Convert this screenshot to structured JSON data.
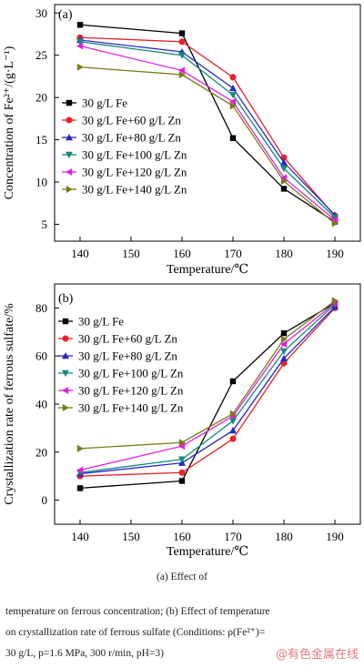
{
  "chart_data": [
    {
      "type": "line",
      "panel_label": "(a)",
      "x": [
        140,
        160,
        170,
        180,
        190
      ],
      "xlabel": "Temperature/℃",
      "ylabel": "Concentration of Fe²⁺/(g·L⁻¹)",
      "xlim": [
        135,
        195
      ],
      "ylim": [
        3,
        31
      ],
      "xticks": [
        140,
        150,
        160,
        170,
        180,
        190
      ],
      "yticks": [
        5,
        10,
        15,
        20,
        25,
        30
      ],
      "legend": "center-left",
      "grid": false,
      "series": [
        {
          "name": "30 g/L Fe",
          "values": [
            28.6,
            27.6,
            15.2,
            9.2,
            5.3
          ],
          "color": "#000000",
          "marker": "square"
        },
        {
          "name": "30 g/L Fe+60 g/L Zn",
          "values": [
            27.1,
            26.6,
            22.4,
            12.9,
            6.0
          ],
          "color": "#e8202a",
          "marker": "circle"
        },
        {
          "name": "30 g/L Fe+80 g/L Zn",
          "values": [
            26.8,
            25.4,
            21.1,
            12.3,
            6.1
          ],
          "color": "#2828c8",
          "marker": "triangle-up"
        },
        {
          "name": "30 g/L Fe+100 g/L Zn",
          "values": [
            26.6,
            25.0,
            20.3,
            11.6,
            5.8
          ],
          "color": "#138a7a",
          "marker": "triangle-down"
        },
        {
          "name": "30 g/L Fe+120 g/L Zn",
          "values": [
            26.1,
            23.2,
            19.5,
            10.5,
            5.5
          ],
          "color": "#e020e0",
          "marker": "triangle-left"
        },
        {
          "name": "30 g/L Fe+140 g/L Zn",
          "values": [
            23.6,
            22.7,
            19.0,
            10.1,
            5.1
          ],
          "color": "#7a7a1a",
          "marker": "triangle-right"
        }
      ]
    },
    {
      "type": "line",
      "panel_label": "(b)",
      "x": [
        140,
        160,
        170,
        180,
        190
      ],
      "xlabel": "Temperature/℃",
      "ylabel": "Crystallization rate of ferrous sulfate/%",
      "xlim": [
        135,
        195
      ],
      "ylim": [
        -10,
        90
      ],
      "xticks": [
        140,
        150,
        160,
        170,
        180,
        190
      ],
      "yticks": [
        0,
        20,
        40,
        60,
        80
      ],
      "legend": "top-left",
      "grid": false,
      "series": [
        {
          "name": "30 g/L Fe",
          "values": [
            5,
            8,
            49.5,
            69.5,
            82
          ],
          "color": "#000000",
          "marker": "square"
        },
        {
          "name": "30 g/L Fe+60 g/L Zn",
          "values": [
            10,
            11.5,
            25.5,
            57,
            80
          ],
          "color": "#e8202a",
          "marker": "circle"
        },
        {
          "name": "30 g/L Fe+80 g/L Zn",
          "values": [
            11,
            15.5,
            29,
            59,
            80.5
          ],
          "color": "#2828c8",
          "marker": "triangle-up"
        },
        {
          "name": "30 g/L Fe+100 g/L Zn",
          "values": [
            11.5,
            17,
            33,
            62,
            81.5
          ],
          "color": "#138a7a",
          "marker": "triangle-down"
        },
        {
          "name": "30 g/L Fe+120 g/L Zn",
          "values": [
            12.5,
            22.5,
            35,
            65,
            82
          ],
          "color": "#e020e0",
          "marker": "triangle-left"
        },
        {
          "name": "30 g/L Fe+140 g/L Zn",
          "values": [
            21.5,
            24,
            36,
            67,
            83
          ],
          "color": "#7a7a1a",
          "marker": "triangle-right"
        }
      ]
    }
  ],
  "caption": {
    "line1": "(a) Effect of",
    "line2": "temperature on ferrous concentration; (b) Effect of temperature",
    "line3": "on crystallization rate of ferrous sulfate (Conditions: ρ(Fe²⁺)=",
    "line4": "30 g/L, p=1.6 MPa, 300 r/min, pH=3)"
  },
  "watermark": "@有色金属在线"
}
